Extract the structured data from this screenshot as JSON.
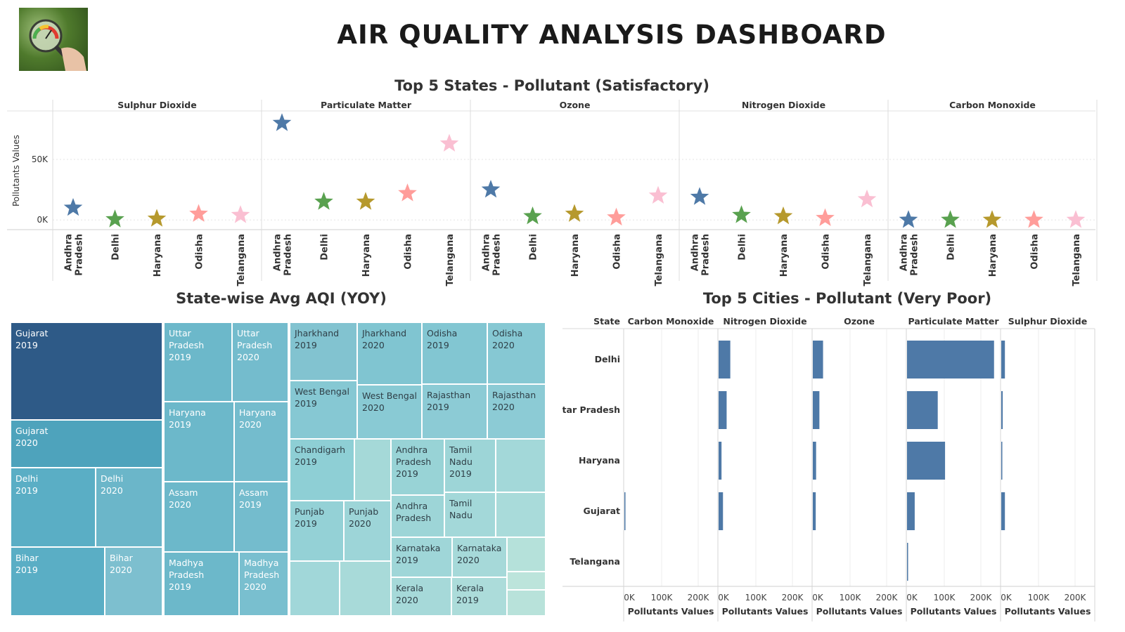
{
  "header": {
    "title": "AIR QUALITY ANALYSIS DASHBOARD"
  },
  "chart_data": [
    {
      "type": "scatter",
      "title": "Top 5 States - Pollutant (Satisfactory)",
      "ylabel": "Pollutants Values",
      "y_ticks": [
        "50K",
        "0K"
      ],
      "ylim": [
        -8000,
        90000
      ],
      "marker": "star",
      "states": [
        "Andhra\nPradesh",
        "Delhi",
        "Haryana",
        "Odisha",
        "Telangana"
      ],
      "state_colors": [
        "#4e79a7",
        "#59a14f",
        "#b6992d",
        "#ff9d9a",
        "#fabfd2"
      ],
      "panels": [
        {
          "name": "Sulphur Dioxide",
          "values": [
            10000,
            500,
            1000,
            5000,
            4000
          ]
        },
        {
          "name": "Particulate Matter",
          "values": [
            80000,
            15000,
            15000,
            22000,
            63000
          ]
        },
        {
          "name": "Ozone",
          "values": [
            25000,
            3000,
            5000,
            2000,
            20000
          ]
        },
        {
          "name": "Nitrogen Dioxide",
          "values": [
            19000,
            4000,
            3000,
            1500,
            17000
          ]
        },
        {
          "name": "Carbon Monoxide",
          "values": [
            0,
            0,
            0,
            0,
            0
          ]
        }
      ]
    },
    {
      "type": "treemap",
      "title": "State-wise Avg AQI (YOY)",
      "tiles": [
        {
          "label": "Gujarat\n2019",
          "v": 33
        },
        {
          "label": "Gujarat\n2020",
          "v": 16
        },
        {
          "label": "Delhi\n2019",
          "v": 17
        },
        {
          "label": "Delhi\n2020",
          "v": 13
        },
        {
          "label": "Bihar\n2019",
          "v": 17
        },
        {
          "label": "Bihar\n2020",
          "v": 11
        },
        {
          "label": "Uttar Pradesh\n2019",
          "v": 12
        },
        {
          "label": "Uttar\nPradesh\n2020",
          "v": 10
        },
        {
          "label": "Haryana\n2019",
          "v": 13
        },
        {
          "label": "Haryana\n2020",
          "v": 10
        },
        {
          "label": "Assam\n2020",
          "v": 12
        },
        {
          "label": "Assam\n2019",
          "v": 10
        },
        {
          "label": "Madhya\nPradesh\n2019",
          "v": 11
        },
        {
          "label": "Madhya\nPradesh\n2020",
          "v": 9
        },
        {
          "label": "Jharkhand\n2019",
          "v": 9
        },
        {
          "label": "Jharkhand\n2020",
          "v": 8
        },
        {
          "label": "Odisha\n2019",
          "v": 9
        },
        {
          "label": "Odisha\n2020",
          "v": 8
        },
        {
          "label": "West Bengal\n2019",
          "v": 9
        },
        {
          "label": "West Bengal\n2020",
          "v": 8
        },
        {
          "label": "Rajasthan\n2019",
          "v": 9
        },
        {
          "label": "Rajasthan\n2020",
          "v": 8
        },
        {
          "label": "Chandigarh\n2019",
          "v": 7
        },
        {
          "label": "",
          "v": 4
        },
        {
          "label": "Punjab\n2019",
          "v": 6
        },
        {
          "label": "Punjab\n2020",
          "v": 5
        },
        {
          "label": "",
          "v": 6
        },
        {
          "label": "",
          "v": 6
        },
        {
          "label": "Andhra\nPradesh\n2019",
          "v": 6
        },
        {
          "label": "Andhra\nPradesh",
          "v": 5
        },
        {
          "label": "Tamil\nNadu\n2019",
          "v": 6
        },
        {
          "label": "Tamil\nNadu",
          "v": 5
        },
        {
          "label": "",
          "v": 5
        },
        {
          "label": "",
          "v": 5
        },
        {
          "label": "Karnataka\n2019",
          "v": 5
        },
        {
          "label": "Karnataka\n2020",
          "v": 5
        },
        {
          "label": "Kerala\n2020",
          "v": 4
        },
        {
          "label": "Kerala\n2019",
          "v": 4
        },
        {
          "label": "",
          "v": 2
        },
        {
          "label": "",
          "v": 1
        },
        {
          "label": "",
          "v": 1
        }
      ]
    },
    {
      "type": "bar",
      "title": "Top 5 Cities - Pollutant (Very Poor)",
      "row_header": "State",
      "categories": [
        "Delhi",
        "Uttar Pradesh",
        "Haryana",
        "Gujarat",
        "Telangana"
      ],
      "xlabel": "Pollutants Values",
      "x_ticks": [
        "0K",
        "100K",
        "200K"
      ],
      "xlim": [
        0,
        250000
      ],
      "bar_color": "#4e79a7",
      "series": [
        {
          "name": "Carbon Monoxide",
          "values": [
            0,
            0,
            0,
            1500,
            0
          ]
        },
        {
          "name": "Nitrogen Dioxide",
          "values": [
            32000,
            22000,
            8000,
            12000,
            0
          ]
        },
        {
          "name": "Ozone",
          "values": [
            28000,
            18000,
            9000,
            8000,
            0
          ]
        },
        {
          "name": "Particulate Matter",
          "values": [
            238000,
            84000,
            104000,
            21000,
            2000
          ]
        },
        {
          "name": "Sulphur Dioxide",
          "values": [
            10000,
            4000,
            2000,
            10000,
            0
          ]
        }
      ]
    }
  ]
}
